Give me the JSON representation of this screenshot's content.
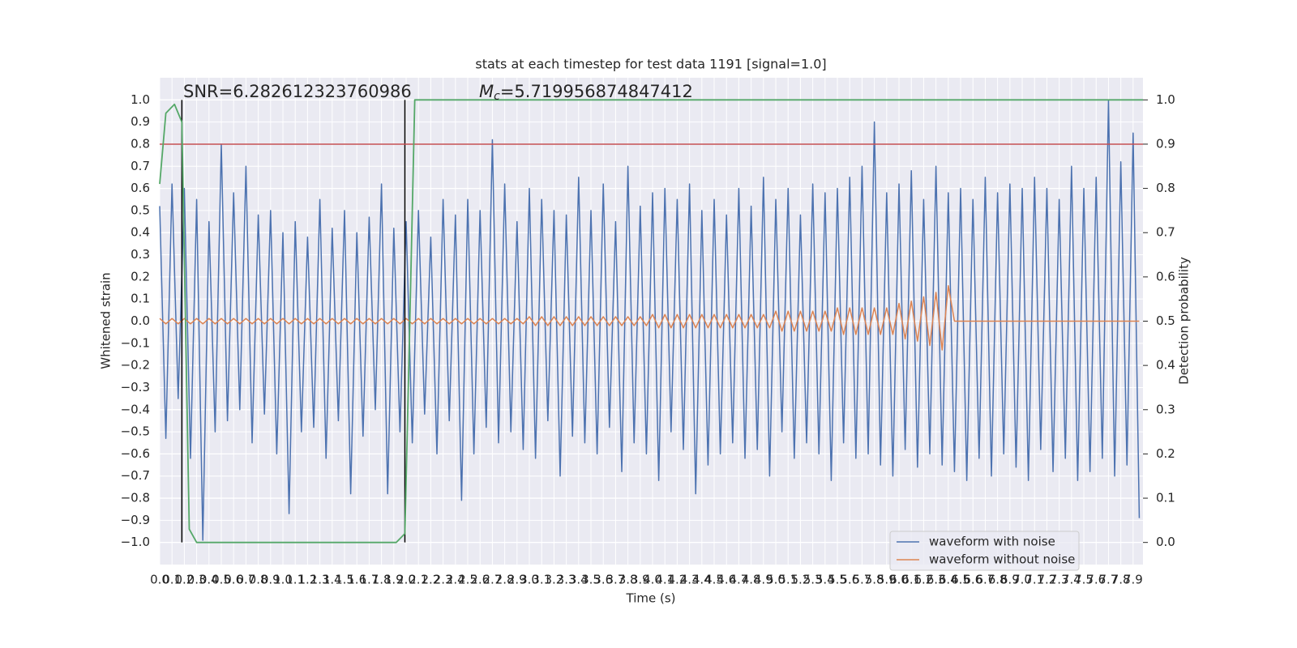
{
  "chart_data": {
    "type": "line",
    "title": "stats at each timestep for test data 1191 [signal=1.0]",
    "x_label": "Time (s)",
    "y_label": "Whitened strain",
    "y2_label": "Detection probability",
    "xlim": [
      0,
      7.98
    ],
    "ylim": [
      -1.1,
      1.1
    ],
    "y2lim": [
      -0.05,
      1.05
    ],
    "grid": true,
    "legend": "lower right",
    "xticks": [
      {
        "value": 0,
        "label": "0.0"
      },
      {
        "value": 0.1,
        "label": "0.1"
      },
      {
        "value": 0.2,
        "label": "0.2"
      },
      {
        "value": 0.3,
        "label": "0.3"
      },
      {
        "value": 0.4,
        "label": "0.4"
      },
      {
        "value": 0.5,
        "label": "0.5"
      },
      {
        "value": 0.6,
        "label": "0.6"
      },
      {
        "value": 0.7,
        "label": "0.7"
      },
      {
        "value": 0.8,
        "label": "0.8"
      },
      {
        "value": 0.9,
        "label": "0.9"
      },
      {
        "value": 1,
        "label": "1.0"
      },
      {
        "value": 1.1,
        "label": "1.1"
      },
      {
        "value": 1.2,
        "label": "1.2"
      },
      {
        "value": 1.3,
        "label": "1.3"
      },
      {
        "value": 1.4,
        "label": "1.4"
      },
      {
        "value": 1.5,
        "label": "1.5"
      },
      {
        "value": 1.6,
        "label": "1.6"
      },
      {
        "value": 1.7,
        "label": "1.7"
      },
      {
        "value": 1.8,
        "label": "1.8"
      },
      {
        "value": 1.9,
        "label": "1.9"
      },
      {
        "value": 2,
        "label": "2.0"
      },
      {
        "value": 2.1,
        "label": "2.1"
      },
      {
        "value": 2.2,
        "label": "2.2"
      },
      {
        "value": 2.3,
        "label": "2.3"
      },
      {
        "value": 2.4,
        "label": "2.4"
      },
      {
        "value": 2.5,
        "label": "2.5"
      },
      {
        "value": 2.6,
        "label": "2.6"
      },
      {
        "value": 2.7,
        "label": "2.7"
      },
      {
        "value": 2.8,
        "label": "2.8"
      },
      {
        "value": 2.9,
        "label": "2.9"
      },
      {
        "value": 3,
        "label": "3.0"
      },
      {
        "value": 3.1,
        "label": "3.1"
      },
      {
        "value": 3.2,
        "label": "3.2"
      },
      {
        "value": 3.3,
        "label": "3.3"
      },
      {
        "value": 3.4,
        "label": "3.4"
      },
      {
        "value": 3.5,
        "label": "3.5"
      },
      {
        "value": 3.6,
        "label": "3.6"
      },
      {
        "value": 3.7,
        "label": "3.7"
      },
      {
        "value": 3.8,
        "label": "3.8"
      },
      {
        "value": 3.9,
        "label": "3.9"
      },
      {
        "value": 4,
        "label": "4.0"
      },
      {
        "value": 4.1,
        "label": "4.1"
      },
      {
        "value": 4.2,
        "label": "4.2"
      },
      {
        "value": 4.3,
        "label": "4.3"
      },
      {
        "value": 4.4,
        "label": "4.4"
      },
      {
        "value": 4.5,
        "label": "4.5"
      },
      {
        "value": 4.6,
        "label": "4.6"
      },
      {
        "value": 4.7,
        "label": "4.7"
      },
      {
        "value": 4.8,
        "label": "4.8"
      },
      {
        "value": 4.9,
        "label": "4.9"
      },
      {
        "value": 5,
        "label": "5.0"
      },
      {
        "value": 5.1,
        "label": "5.1"
      },
      {
        "value": 5.2,
        "label": "5.2"
      },
      {
        "value": 5.3,
        "label": "5.3"
      },
      {
        "value": 5.4,
        "label": "5.4"
      },
      {
        "value": 5.5,
        "label": "5.5"
      },
      {
        "value": 5.6,
        "label": "5.6"
      },
      {
        "value": 5.7,
        "label": "5.7"
      },
      {
        "value": 5.8,
        "label": "5.8"
      },
      {
        "value": 5.9,
        "label": "5.9"
      },
      {
        "value": 6,
        "label": "6.0"
      },
      {
        "value": 6.1,
        "label": "6.1"
      },
      {
        "value": 6.2,
        "label": "6.2"
      },
      {
        "value": 6.3,
        "label": "6.3"
      },
      {
        "value": 6.4,
        "label": "6.4"
      },
      {
        "value": 6.5,
        "label": "6.5"
      },
      {
        "value": 6.6,
        "label": "6.6"
      },
      {
        "value": 6.7,
        "label": "6.7"
      },
      {
        "value": 6.8,
        "label": "6.8"
      },
      {
        "value": 6.9,
        "label": "6.9"
      },
      {
        "value": 7,
        "label": "7.0"
      },
      {
        "value": 7.1,
        "label": "7.1"
      },
      {
        "value": 7.2,
        "label": "7.2"
      },
      {
        "value": 7.3,
        "label": "7.3"
      },
      {
        "value": 7.4,
        "label": "7.4"
      },
      {
        "value": 7.5,
        "label": "7.5"
      },
      {
        "value": 7.6,
        "label": "7.6"
      },
      {
        "value": 7.7,
        "label": "7.7"
      },
      {
        "value": 7.8,
        "label": "7.8"
      },
      {
        "value": 7.9,
        "label": "7.9"
      }
    ],
    "yticks": [
      {
        "value": -1,
        "label": "−1.0"
      },
      {
        "value": -0.9,
        "label": "−0.9"
      },
      {
        "value": -0.8,
        "label": "−0.8"
      },
      {
        "value": -0.7,
        "label": "−0.7"
      },
      {
        "value": -0.6,
        "label": "−0.6"
      },
      {
        "value": -0.5,
        "label": "−0.5"
      },
      {
        "value": -0.4,
        "label": "−0.4"
      },
      {
        "value": -0.3,
        "label": "−0.3"
      },
      {
        "value": -0.2,
        "label": "−0.2"
      },
      {
        "value": -0.1,
        "label": "−0.1"
      },
      {
        "value": 0,
        "label": "0.0"
      },
      {
        "value": 0.1,
        "label": "0.1"
      },
      {
        "value": 0.2,
        "label": "0.2"
      },
      {
        "value": 0.3,
        "label": "0.3"
      },
      {
        "value": 0.4,
        "label": "0.4"
      },
      {
        "value": 0.5,
        "label": "0.5"
      },
      {
        "value": 0.6,
        "label": "0.6"
      },
      {
        "value": 0.7,
        "label": "0.7"
      },
      {
        "value": 0.8,
        "label": "0.8"
      },
      {
        "value": 0.9,
        "label": "0.9"
      },
      {
        "value": 1,
        "label": "1.0"
      }
    ],
    "y2ticks": [
      {
        "value": 0,
        "label": "0.0"
      },
      {
        "value": 0.1,
        "label": "0.1"
      },
      {
        "value": 0.2,
        "label": "0.2"
      },
      {
        "value": 0.3,
        "label": "0.3"
      },
      {
        "value": 0.4,
        "label": "0.4"
      },
      {
        "value": 0.5,
        "label": "0.5"
      },
      {
        "value": 0.6,
        "label": "0.6"
      },
      {
        "value": 0.7,
        "label": "0.7"
      },
      {
        "value": 0.8,
        "label": "0.8"
      },
      {
        "value": 0.9,
        "label": "0.9"
      },
      {
        "value": 1,
        "label": "1.0"
      }
    ],
    "x": [
      0,
      0.05,
      0.1,
      0.15,
      0.2,
      0.25,
      0.3,
      0.35,
      0.4,
      0.45,
      0.5,
      0.55,
      0.6,
      0.65,
      0.7,
      0.75,
      0.8,
      0.85,
      0.9,
      0.95,
      1,
      1.05,
      1.1,
      1.15,
      1.2,
      1.25,
      1.3,
      1.35,
      1.4,
      1.45,
      1.5,
      1.55,
      1.6,
      1.65,
      1.7,
      1.75,
      1.8,
      1.85,
      1.9,
      1.95,
      2,
      2.05,
      2.1,
      2.15,
      2.2,
      2.25,
      2.3,
      2.35,
      2.4,
      2.45,
      2.5,
      2.55,
      2.6,
      2.65,
      2.7,
      2.75,
      2.8,
      2.85,
      2.9,
      2.95,
      3,
      3.05,
      3.1,
      3.15,
      3.2,
      3.25,
      3.3,
      3.35,
      3.4,
      3.45,
      3.5,
      3.55,
      3.6,
      3.65,
      3.7,
      3.75,
      3.8,
      3.85,
      3.9,
      3.95,
      4,
      4.05,
      4.1,
      4.15,
      4.2,
      4.25,
      4.3,
      4.35,
      4.4,
      4.45,
      4.5,
      4.55,
      4.6,
      4.65,
      4.7,
      4.75,
      4.8,
      4.85,
      4.9,
      4.95,
      5,
      5.05,
      5.1,
      5.15,
      5.2,
      5.25,
      5.3,
      5.35,
      5.4,
      5.45,
      5.5,
      5.55,
      5.6,
      5.65,
      5.7,
      5.75,
      5.8,
      5.85,
      5.9,
      5.95,
      6,
      6.05,
      6.1,
      6.15,
      6.2,
      6.25,
      6.3,
      6.35,
      6.4,
      6.45,
      6.5,
      6.55,
      6.6,
      6.65,
      6.7,
      6.75,
      6.8,
      6.85,
      6.9,
      6.95,
      7,
      7.05,
      7.1,
      7.15,
      7.2,
      7.25,
      7.3,
      7.35,
      7.4,
      7.45,
      7.5,
      7.55,
      7.6,
      7.65,
      7.7,
      7.75,
      7.8,
      7.85,
      7.9,
      7.95
    ],
    "series": [
      {
        "name": "waveform with noise",
        "color": "#4c72b0",
        "values": [
          0.52,
          -0.53,
          0.62,
          -0.35,
          0.6,
          -0.62,
          0.55,
          -0.99,
          0.45,
          -0.5,
          0.8,
          -0.45,
          0.58,
          -0.4,
          0.7,
          -0.55,
          0.48,
          -0.42,
          0.5,
          -0.6,
          0.4,
          -0.87,
          0.45,
          -0.5,
          0.38,
          -0.48,
          0.55,
          -0.62,
          0.42,
          -0.45,
          0.5,
          -0.78,
          0.4,
          -0.52,
          0.47,
          -0.4,
          0.62,
          -0.78,
          0.42,
          -0.5,
          0.45,
          -0.55,
          0.5,
          -0.42,
          0.38,
          -0.6,
          0.55,
          -0.45,
          0.48,
          -0.81,
          0.55,
          -0.6,
          0.5,
          -0.48,
          0.82,
          -0.55,
          0.62,
          -0.5,
          0.45,
          -0.58,
          0.6,
          -0.62,
          0.55,
          -0.45,
          0.5,
          -0.7,
          0.48,
          -0.52,
          0.65,
          -0.55,
          0.5,
          -0.6,
          0.62,
          -0.48,
          0.45,
          -0.68,
          0.7,
          -0.55,
          0.52,
          -0.6,
          0.58,
          -0.72,
          0.6,
          -0.5,
          0.55,
          -0.58,
          0.62,
          -0.78,
          0.5,
          -0.65,
          0.55,
          -0.6,
          0.48,
          -0.55,
          0.6,
          -0.62,
          0.52,
          -0.58,
          0.65,
          -0.7,
          0.55,
          -0.5,
          0.6,
          -0.62,
          0.48,
          -0.55,
          0.62,
          -0.6,
          0.58,
          -0.72,
          0.6,
          -0.55,
          0.65,
          -0.62,
          0.7,
          -0.6,
          0.9,
          -0.65,
          0.58,
          -0.7,
          0.62,
          -0.58,
          0.68,
          -0.66,
          0.55,
          -0.6,
          0.7,
          -0.65,
          0.58,
          -0.68,
          0.6,
          -0.72,
          0.55,
          -0.62,
          0.65,
          -0.7,
          0.58,
          -0.6,
          0.62,
          -0.66,
          0.6,
          -0.72,
          0.65,
          -0.58,
          0.6,
          -0.68,
          0.55,
          -0.62,
          0.7,
          -0.72,
          0.6,
          -0.68,
          0.65,
          -0.62,
          1.0,
          -0.7,
          0.72,
          -0.65,
          0.85,
          -0.89
        ]
      },
      {
        "name": "waveform without noise",
        "color": "#dd8452",
        "values": [
          0.012,
          -0.012,
          0.012,
          -0.012,
          0.012,
          -0.012,
          0.012,
          -0.012,
          0.012,
          -0.012,
          0.012,
          -0.012,
          0.012,
          -0.012,
          0.012,
          -0.012,
          0.012,
          -0.012,
          0.012,
          -0.012,
          0.012,
          -0.012,
          0.012,
          -0.012,
          0.012,
          -0.012,
          0.012,
          -0.012,
          0.012,
          -0.012,
          0.012,
          -0.012,
          0.012,
          -0.012,
          0.012,
          -0.012,
          0.012,
          -0.012,
          0.012,
          -0.012,
          0.012,
          -0.012,
          0.012,
          -0.012,
          0.012,
          -0.012,
          0.012,
          -0.012,
          0.012,
          -0.012,
          0.012,
          -0.012,
          0.012,
          -0.012,
          0.012,
          -0.012,
          0.012,
          -0.012,
          0.012,
          -0.012,
          0.02,
          -0.02,
          0.02,
          -0.02,
          0.02,
          -0.02,
          0.02,
          -0.02,
          0.02,
          -0.02,
          0.02,
          -0.02,
          0.02,
          -0.02,
          0.02,
          -0.02,
          0.02,
          -0.02,
          0.02,
          -0.02,
          0.03,
          -0.03,
          0.03,
          -0.03,
          0.03,
          -0.03,
          0.03,
          -0.03,
          0.03,
          -0.03,
          0.03,
          -0.03,
          0.03,
          -0.03,
          0.03,
          -0.03,
          0.03,
          -0.03,
          0.03,
          -0.03,
          0.045,
          -0.045,
          0.045,
          -0.045,
          0.045,
          -0.045,
          0.045,
          -0.045,
          0.045,
          -0.045,
          0.06,
          -0.06,
          0.06,
          -0.06,
          0.06,
          -0.06,
          0.06,
          -0.06,
          0.06,
          -0.06,
          0.08,
          -0.08,
          0.09,
          -0.09,
          0.11,
          -0.11,
          0.13,
          -0.13,
          0.16,
          0,
          0,
          0,
          0,
          0,
          0,
          0,
          0,
          0,
          0,
          0,
          0,
          0,
          0,
          0,
          0,
          0,
          0,
          0,
          0,
          0,
          0,
          0,
          0,
          0,
          0,
          0,
          0,
          0,
          0,
          0
        ]
      }
    ],
    "probability": {
      "color": "#55a868",
      "x": [
        0,
        0.05,
        0.12,
        0.18,
        0.24,
        0.3,
        1.92,
        1.99,
        2.03,
        2.07,
        7.98
      ],
      "values": [
        0.81,
        0.97,
        0.99,
        0.95,
        0.03,
        0,
        0,
        0.02,
        0.5,
        1,
        1
      ]
    },
    "threshold": {
      "value": 0.9,
      "color": "#c44e52"
    },
    "vlines": {
      "color": "#000000",
      "x": [
        0.18,
        1.99
      ]
    },
    "annotations": [
      {
        "text": "SNR=6.282612323760986"
      },
      {
        "symbol": "M",
        "subscript": "c",
        "text": "=5.719956874847412"
      }
    ]
  }
}
